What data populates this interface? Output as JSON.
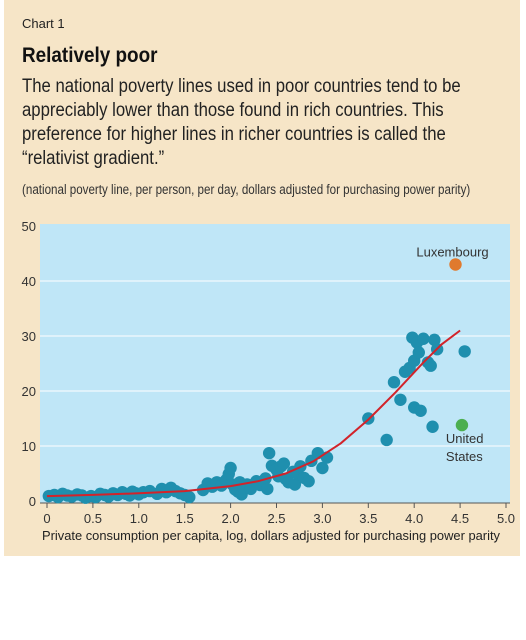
{
  "header": {
    "chart_label": "Chart 1",
    "title": "Relatively poor",
    "subtitle": "The national poverty lines used in poor countries tend to be appreciably lower than those found in rich countries. This preference for higher lines in richer countries is called the “relativist gradient.”",
    "unit_note": "(national poverty line, per person, per day, dollars adjusted for purchasing power parity)"
  },
  "colors": {
    "panel": "#f6e5c7",
    "plot_bg": "#bfe6f7",
    "grid": "#ffffff",
    "dots": "#1f8fae",
    "trend": "#d2232a",
    "luxembourg": "#e07a2e",
    "united_states": "#4caf50"
  },
  "chart_data": {
    "type": "scatter",
    "title": "Relatively poor",
    "xlabel": "Private consumption per capita, log, dollars adjusted for purchasing power parity",
    "ylabel": "",
    "xlim": [
      0,
      5.0
    ],
    "ylim": [
      0,
      50
    ],
    "x_ticks": [
      "0",
      "0.5",
      "1.0",
      "1.5",
      "2.0",
      "2.5",
      "3.0",
      "3.5",
      "4.0",
      "4.5",
      "5.0"
    ],
    "y_ticks": [
      "0",
      "10",
      "20",
      "30",
      "40",
      "50"
    ],
    "grid": true,
    "highlighted": [
      {
        "label": "Luxembourg",
        "x": 4.45,
        "y": 43,
        "color": "#e07a2e"
      },
      {
        "label": "United States",
        "x": 4.52,
        "y": 13.8,
        "color": "#4caf50"
      }
    ],
    "points": [
      [
        0.02,
        0.9
      ],
      [
        0.08,
        1.1
      ],
      [
        0.12,
        0.7
      ],
      [
        0.17,
        1.3
      ],
      [
        0.22,
        1.0
      ],
      [
        0.27,
        0.8
      ],
      [
        0.33,
        1.2
      ],
      [
        0.38,
        1.0
      ],
      [
        0.42,
        0.6
      ],
      [
        0.48,
        0.9
      ],
      [
        0.53,
        0.7
      ],
      [
        0.58,
        1.3
      ],
      [
        0.63,
        1.1
      ],
      [
        0.67,
        0.8
      ],
      [
        0.72,
        1.4
      ],
      [
        0.77,
        1.1
      ],
      [
        0.82,
        1.6
      ],
      [
        0.86,
        1.3
      ],
      [
        0.9,
        1.0
      ],
      [
        0.93,
        1.7
      ],
      [
        0.97,
        1.4
      ],
      [
        1.0,
        1.2
      ],
      [
        1.05,
        1.6
      ],
      [
        1.12,
        1.8
      ],
      [
        1.2,
        1.3
      ],
      [
        1.25,
        2.2
      ],
      [
        1.3,
        1.6
      ],
      [
        1.35,
        2.4
      ],
      [
        1.4,
        1.8
      ],
      [
        1.45,
        1.4
      ],
      [
        1.5,
        1.1
      ],
      [
        1.55,
        0.7
      ],
      [
        1.7,
        2.0
      ],
      [
        1.75,
        3.2
      ],
      [
        1.8,
        2.6
      ],
      [
        1.85,
        3.4
      ],
      [
        1.9,
        2.8
      ],
      [
        1.95,
        3.8
      ],
      [
        1.98,
        4.9
      ],
      [
        2.0,
        6.0
      ],
      [
        2.02,
        3.0
      ],
      [
        2.05,
        2.1
      ],
      [
        2.08,
        1.7
      ],
      [
        2.1,
        3.4
      ],
      [
        2.12,
        1.2
      ],
      [
        2.14,
        2.4
      ],
      [
        2.18,
        3.0
      ],
      [
        2.22,
        2.2
      ],
      [
        2.28,
        3.6
      ],
      [
        2.32,
        2.9
      ],
      [
        2.38,
        4.1
      ],
      [
        2.4,
        2.2
      ],
      [
        2.42,
        8.7
      ],
      [
        2.45,
        6.4
      ],
      [
        2.5,
        5.7
      ],
      [
        2.52,
        4.5
      ],
      [
        2.55,
        6.3
      ],
      [
        2.58,
        6.8
      ],
      [
        2.6,
        4.0
      ],
      [
        2.63,
        3.4
      ],
      [
        2.68,
        5.3
      ],
      [
        2.7,
        3.0
      ],
      [
        2.73,
        4.9
      ],
      [
        2.76,
        6.3
      ],
      [
        2.8,
        4.2
      ],
      [
        2.85,
        3.6
      ],
      [
        2.88,
        7.3
      ],
      [
        2.95,
        8.7
      ],
      [
        3.0,
        6.0
      ],
      [
        3.05,
        7.9
      ],
      [
        3.5,
        15.0
      ],
      [
        3.7,
        11.1
      ],
      [
        3.78,
        21.6
      ],
      [
        3.85,
        18.4
      ],
      [
        3.9,
        23.5
      ],
      [
        3.95,
        24.2
      ],
      [
        3.98,
        29.7
      ],
      [
        4.0,
        25.5
      ],
      [
        4.0,
        17.0
      ],
      [
        4.03,
        28.8
      ],
      [
        4.05,
        27.0
      ],
      [
        4.07,
        16.4
      ],
      [
        4.1,
        29.5
      ],
      [
        4.15,
        25.2
      ],
      [
        4.18,
        24.6
      ],
      [
        4.2,
        13.5
      ],
      [
        4.22,
        29.3
      ],
      [
        4.25,
        27.6
      ],
      [
        4.55,
        27.2
      ]
    ],
    "trend": [
      [
        0,
        0.9
      ],
      [
        0.5,
        1.1
      ],
      [
        1.0,
        1.4
      ],
      [
        1.5,
        1.8
      ],
      [
        2.0,
        2.7
      ],
      [
        2.3,
        3.6
      ],
      [
        2.6,
        5.0
      ],
      [
        2.9,
        7.2
      ],
      [
        3.2,
        10.5
      ],
      [
        3.5,
        14.8
      ],
      [
        3.8,
        19.8
      ],
      [
        4.1,
        25.2
      ],
      [
        4.3,
        28.5
      ],
      [
        4.5,
        31.0
      ]
    ]
  }
}
